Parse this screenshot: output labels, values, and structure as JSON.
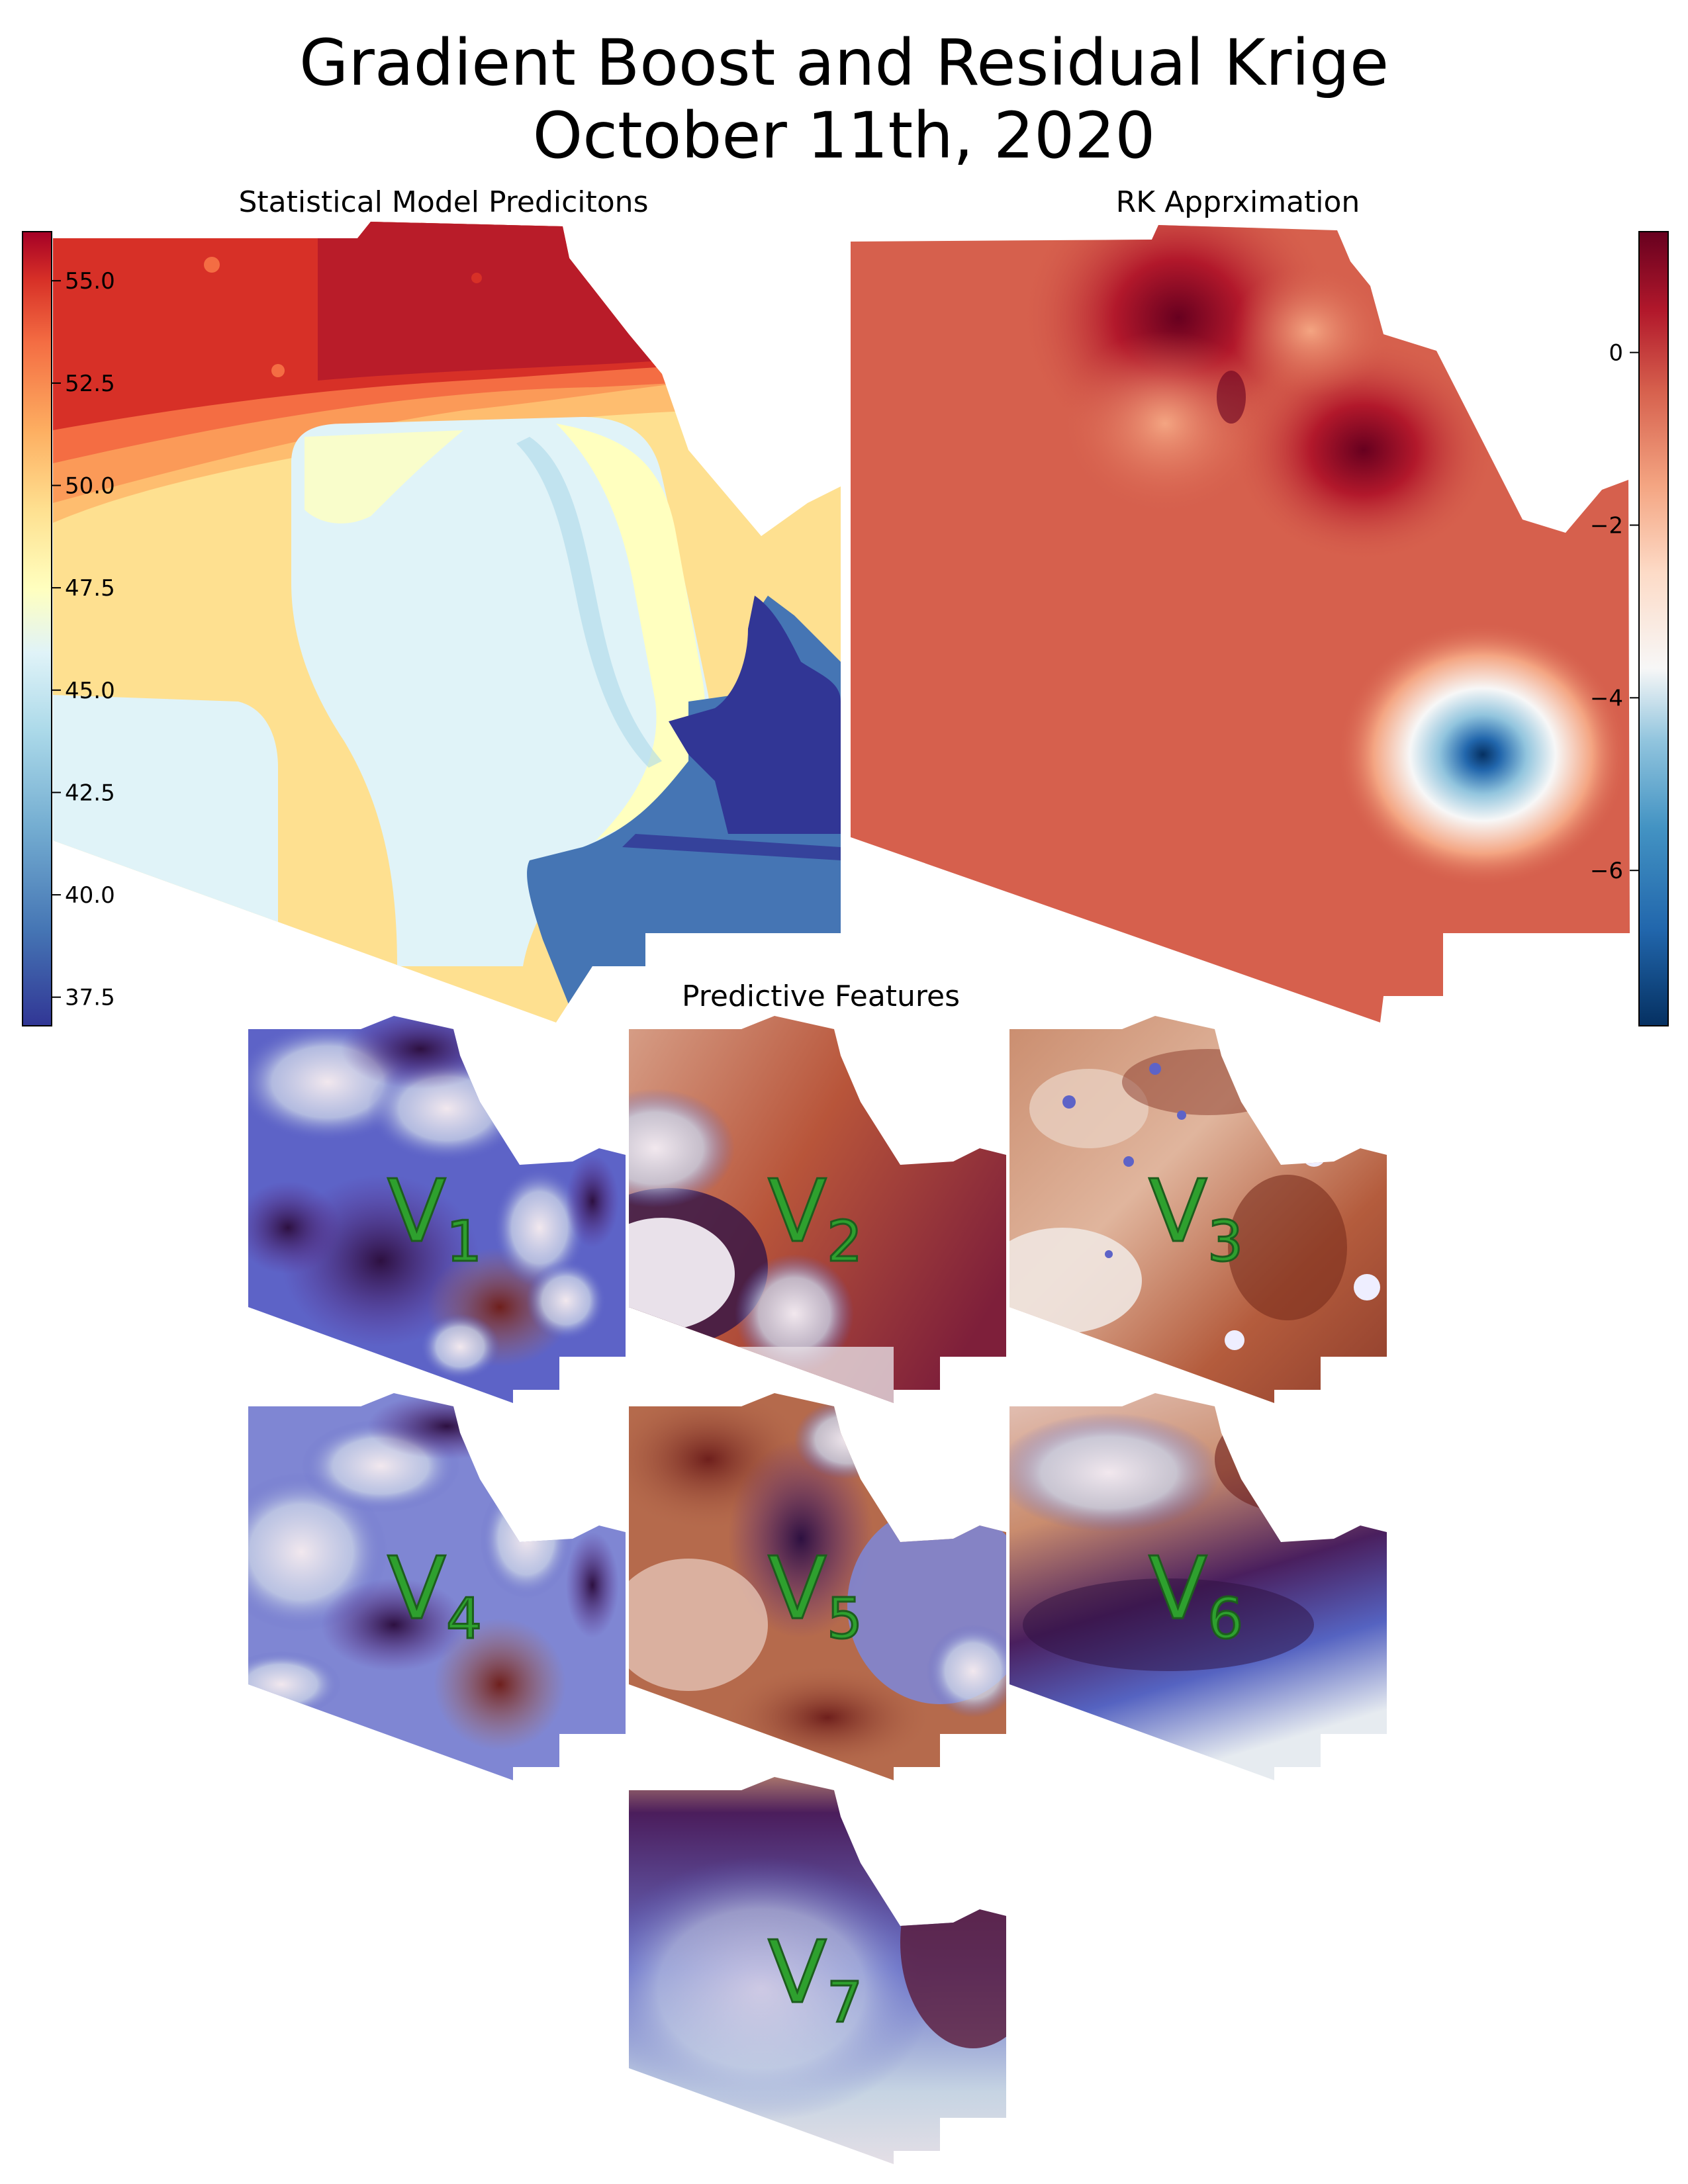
{
  "title_line1": "Gradient Boost and Residual Krige",
  "title_line2": "October 11th, 2020",
  "panel_left_title": "Statistical Model Predicitons",
  "panel_right_title": "RK Apprximation",
  "features_title": "Predictive Features",
  "left_colorbar": {
    "ticks": [
      "55.0",
      "52.5",
      "50.0",
      "47.5",
      "45.0",
      "42.5",
      "40.0",
      "37.5"
    ],
    "tick_values": [
      55.0,
      52.5,
      50.0,
      47.5,
      45.0,
      42.5,
      40.0,
      37.5
    ],
    "range": [
      36.8,
      56.2
    ],
    "colormap": "RdYlBu_r"
  },
  "right_colorbar": {
    "ticks": [
      "0",
      "−2",
      "−4",
      "−6"
    ],
    "tick_values": [
      0,
      -2,
      -4,
      -6
    ],
    "range": [
      -7.8,
      1.4
    ],
    "colormap": "RdBu_r"
  },
  "features": [
    {
      "label": "V",
      "sub": "1"
    },
    {
      "label": "V",
      "sub": "2"
    },
    {
      "label": "V",
      "sub": "3"
    },
    {
      "label": "V",
      "sub": "4"
    },
    {
      "label": "V",
      "sub": "5"
    },
    {
      "label": "V",
      "sub": "6"
    },
    {
      "label": "V",
      "sub": "7"
    }
  ],
  "colors": {
    "rd_dark": "#67001f",
    "rd_mid": "#d6604d",
    "yellow": "#ffffbf",
    "blue_dark": "#313695",
    "twilight_purple": "#2d1e5a",
    "twilight_brown": "#7a2d1d",
    "label_green": "#2ea02e"
  }
}
